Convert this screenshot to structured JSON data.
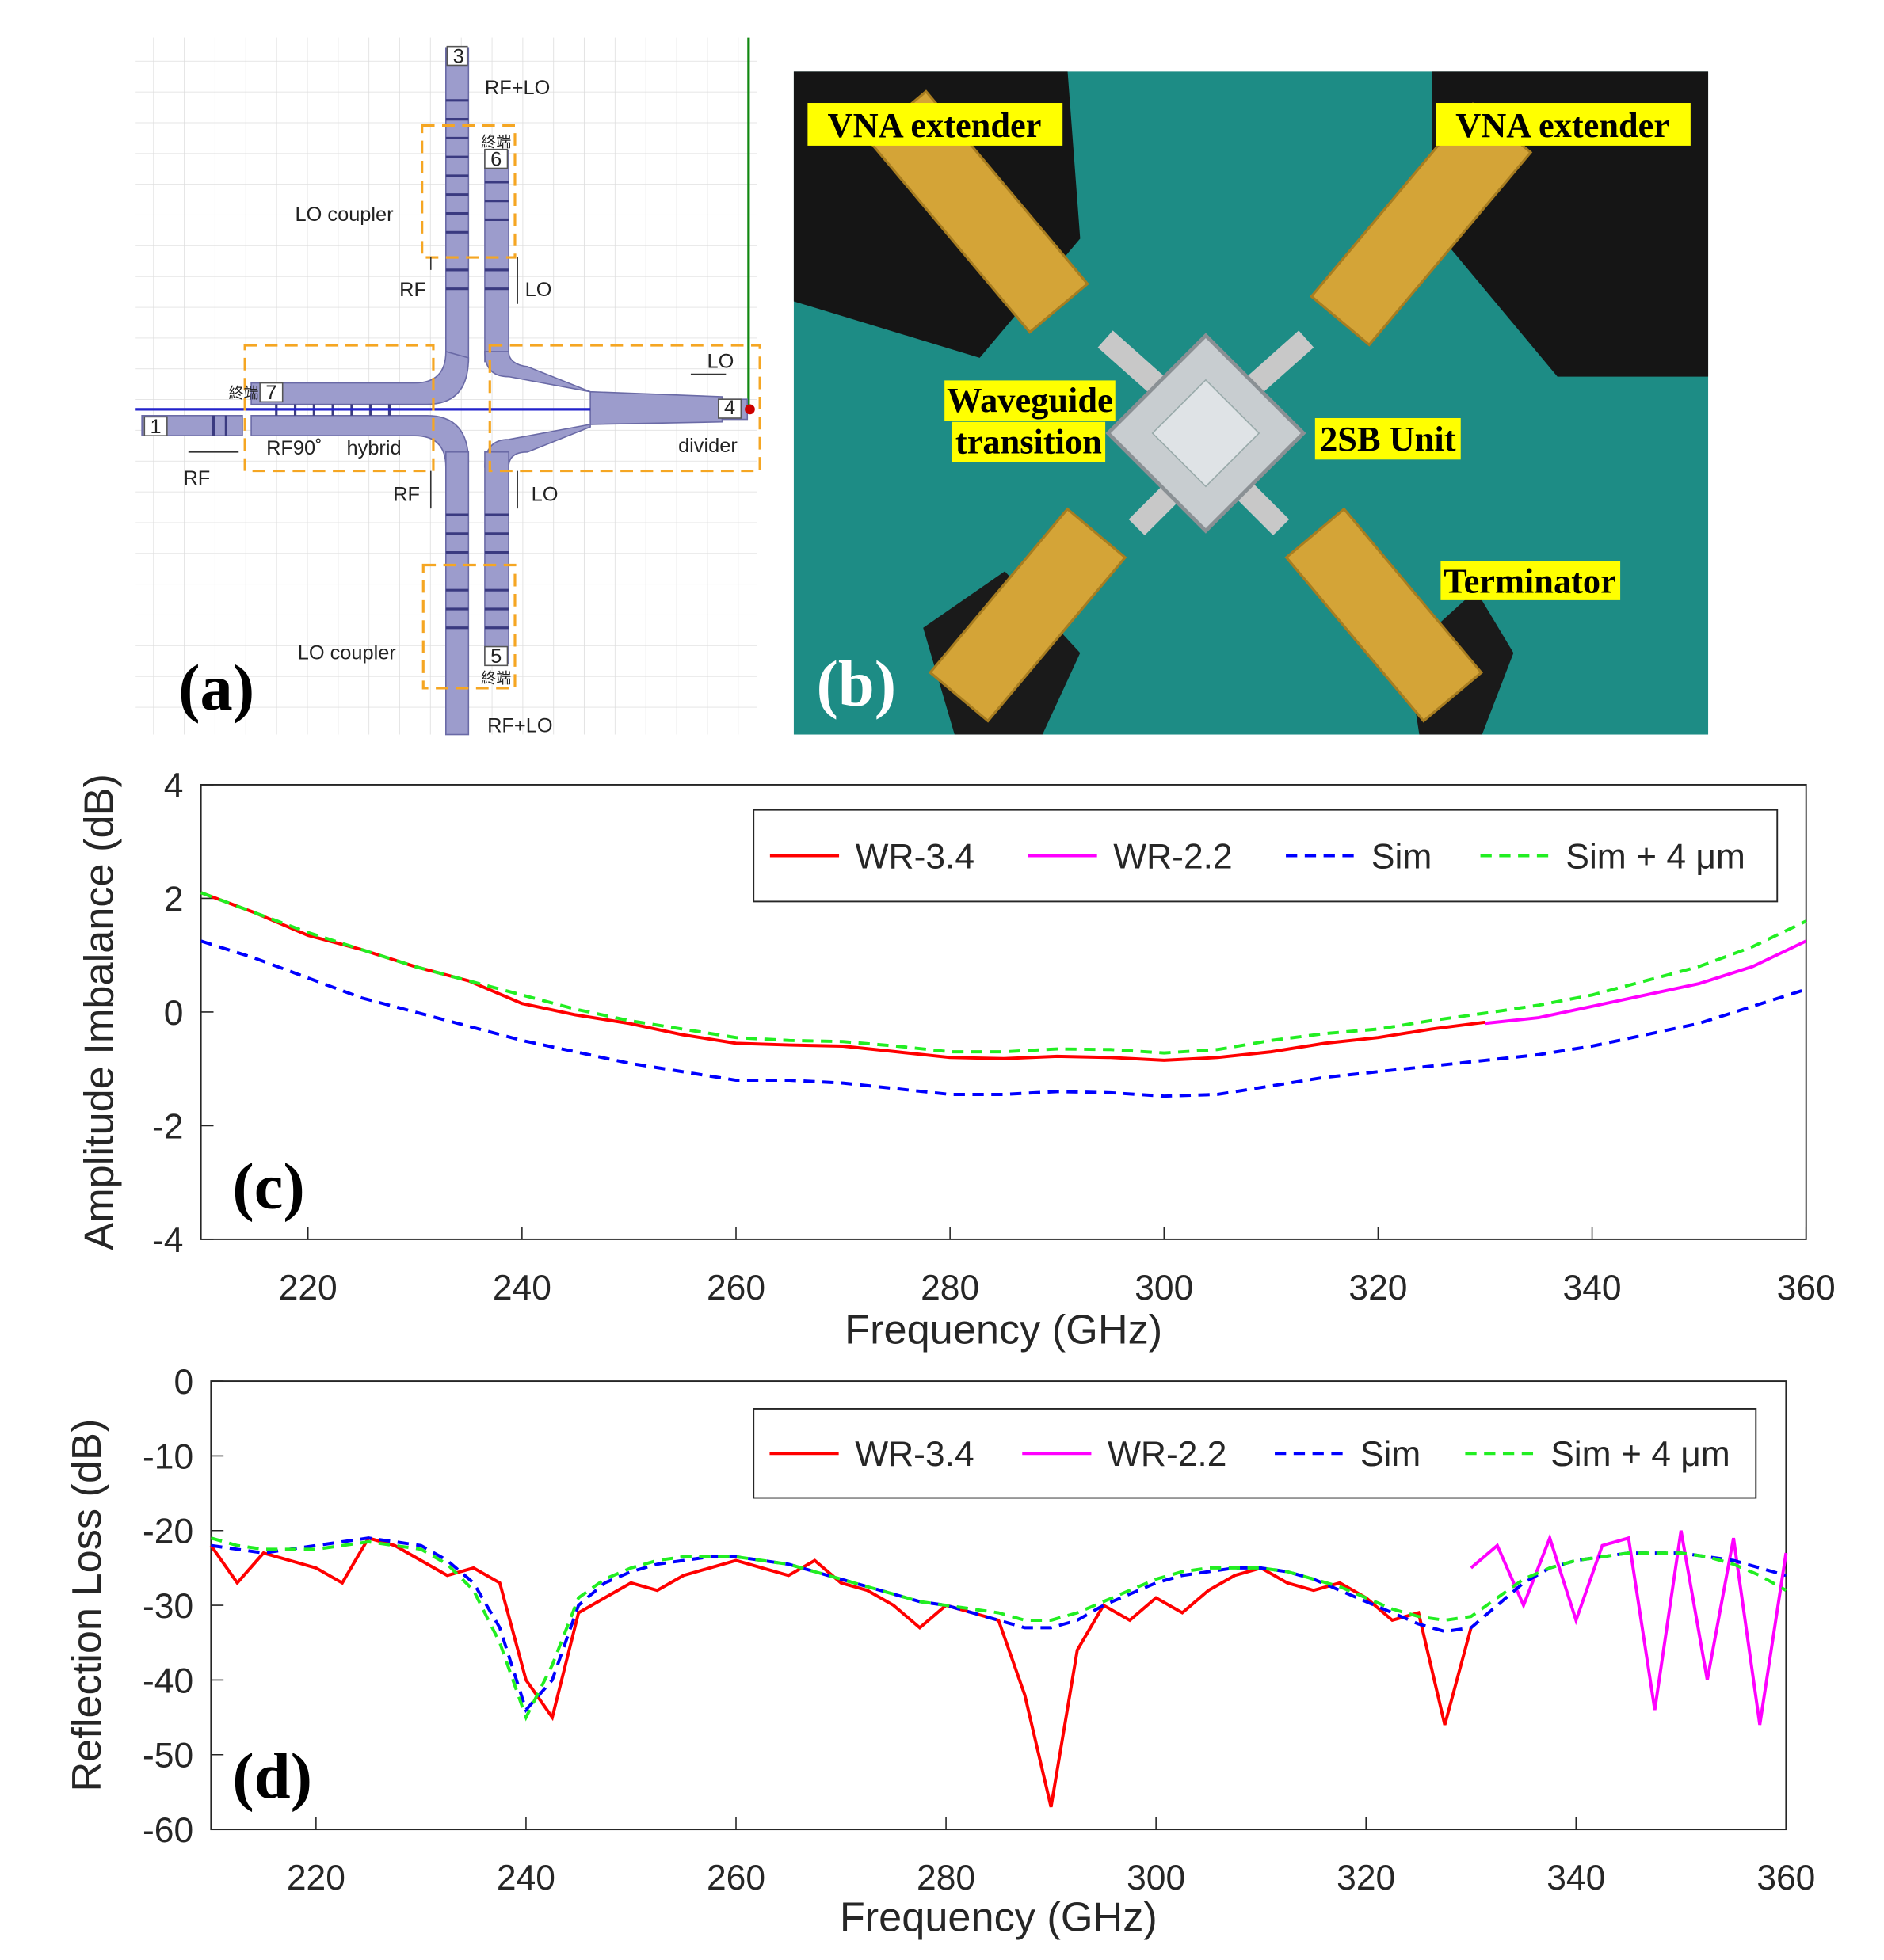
{
  "diagram": {
    "label": "(a)",
    "annotations": [
      "3",
      "RF+LO",
      "6",
      "終端",
      "LO coupler",
      "RF",
      "LO",
      "LO",
      "終端",
      "7",
      "4",
      "1",
      "RF90˚",
      "hybrid",
      "divider",
      "RF",
      "RF",
      "LO",
      "LO coupler",
      "5",
      "終端",
      "RF+LO"
    ]
  },
  "photo": {
    "label": "(b)",
    "labels": [
      "VNA extender",
      "VNA extender",
      [
        "Waveguide",
        "transition"
      ],
      "2SB Unit",
      "Terminator"
    ]
  },
  "chart_data": [
    {
      "type": "line",
      "label": "(c)",
      "xlabel": "Frequency (GHz)",
      "ylabel": "Amplitude Imbalance (dB)",
      "xlim": [
        210,
        360
      ],
      "ylim": [
        -4,
        4
      ],
      "xticks": [
        220,
        240,
        260,
        280,
        300,
        320,
        340,
        360
      ],
      "yticks": [
        -4,
        -2,
        0,
        2,
        4
      ],
      "grid": false,
      "legend": "upper right",
      "x": [
        210,
        215,
        220,
        225,
        230,
        235,
        240,
        245,
        250,
        255,
        260,
        265,
        270,
        275,
        280,
        285,
        290,
        295,
        300,
        305,
        310,
        315,
        320,
        325,
        330,
        335,
        340,
        345,
        350,
        355,
        360
      ],
      "series": [
        {
          "name": "WR-3.4",
          "color": "#ff0000",
          "dash": false,
          "values": [
            2.1,
            1.75,
            1.35,
            1.1,
            0.8,
            0.55,
            0.15,
            -0.05,
            -0.2,
            -0.4,
            -0.55,
            -0.58,
            -0.6,
            -0.7,
            -0.8,
            -0.82,
            -0.78,
            -0.8,
            -0.85,
            -0.8,
            -0.7,
            -0.55,
            -0.45,
            -0.3,
            -0.18,
            null,
            null,
            null,
            null,
            null,
            null
          ]
        },
        {
          "name": "WR-2.2",
          "color": "#ff00ff",
          "dash": false,
          "values": [
            null,
            null,
            null,
            null,
            null,
            null,
            null,
            null,
            null,
            null,
            null,
            null,
            null,
            null,
            null,
            null,
            null,
            null,
            null,
            null,
            null,
            null,
            null,
            null,
            -0.2,
            -0.1,
            0.1,
            0.3,
            0.5,
            0.8,
            1.25
          ]
        },
        {
          "name": "Sim",
          "color": "#0000ff",
          "dash": true,
          "values": [
            1.25,
            0.95,
            0.6,
            0.25,
            0.0,
            -0.25,
            -0.5,
            -0.7,
            -0.9,
            -1.05,
            -1.2,
            -1.2,
            -1.25,
            -1.35,
            -1.45,
            -1.45,
            -1.4,
            -1.42,
            -1.48,
            -1.45,
            -1.3,
            -1.15,
            -1.05,
            -0.95,
            -0.85,
            -0.75,
            -0.6,
            -0.4,
            -0.2,
            0.1,
            0.4
          ]
        },
        {
          "name": "Sim + 4 μm",
          "color": "#22ee22",
          "dash": true,
          "values": [
            2.1,
            1.75,
            1.4,
            1.1,
            0.8,
            0.55,
            0.3,
            0.05,
            -0.15,
            -0.3,
            -0.45,
            -0.5,
            -0.52,
            -0.6,
            -0.7,
            -0.7,
            -0.65,
            -0.66,
            -0.72,
            -0.66,
            -0.5,
            -0.38,
            -0.3,
            -0.15,
            -0.02,
            0.12,
            0.3,
            0.55,
            0.8,
            1.15,
            1.6
          ]
        }
      ]
    },
    {
      "type": "line",
      "label": "(d)",
      "xlabel": "Frequency (GHz)",
      "ylabel": "Reflection Loss (dB)",
      "xlim": [
        210,
        360
      ],
      "ylim": [
        -60,
        0
      ],
      "xticks": [
        220,
        240,
        260,
        280,
        300,
        320,
        340,
        360
      ],
      "yticks": [
        -60,
        -50,
        -40,
        -30,
        -20,
        -10,
        0
      ],
      "grid": false,
      "legend": "upper right",
      "x": [
        210,
        212.5,
        215,
        217.5,
        220,
        222.5,
        225,
        227.5,
        230,
        232.5,
        235,
        237.5,
        240,
        242.5,
        245,
        247.5,
        250,
        252.5,
        255,
        257.5,
        260,
        262.5,
        265,
        267.5,
        270,
        272.5,
        275,
        277.5,
        280,
        282.5,
        285,
        287.5,
        290,
        292.5,
        295,
        297.5,
        300,
        302.5,
        305,
        307.5,
        310,
        312.5,
        315,
        317.5,
        320,
        322.5,
        325,
        327.5,
        330,
        332.5,
        335,
        337.5,
        340,
        342.5,
        345,
        347.5,
        350,
        352.5,
        355,
        357.5,
        360
      ],
      "series": [
        {
          "name": "WR-3.4",
          "color": "#ff0000",
          "dash": false,
          "values": [
            -22,
            -27,
            -23,
            -24,
            -25,
            -27,
            -21,
            -22,
            -24,
            -26,
            -25,
            -27,
            -40,
            -45,
            -31,
            -29,
            -27,
            -28,
            -26,
            -25,
            -24,
            -25,
            -26,
            -24,
            -27,
            -28,
            -30,
            -33,
            -30,
            -31,
            -32,
            -42,
            -57,
            -36,
            -30,
            -32,
            -29,
            -31,
            -28,
            -26,
            -25,
            -27,
            -28,
            -27,
            -29,
            -32,
            -31,
            -46,
            -33,
            null,
            null,
            null,
            null,
            null,
            null,
            null,
            null,
            null,
            null,
            null,
            null
          ]
        },
        {
          "name": "WR-2.2",
          "color": "#ff00ff",
          "dash": false,
          "values": [
            null,
            null,
            null,
            null,
            null,
            null,
            null,
            null,
            null,
            null,
            null,
            null,
            null,
            null,
            null,
            null,
            null,
            null,
            null,
            null,
            null,
            null,
            null,
            null,
            null,
            null,
            null,
            null,
            null,
            null,
            null,
            null,
            null,
            null,
            null,
            null,
            null,
            null,
            null,
            null,
            null,
            null,
            null,
            null,
            null,
            null,
            null,
            null,
            -25,
            -22,
            -30,
            -21,
            -32,
            -22,
            -21,
            -44,
            -20,
            -40,
            -21,
            -46,
            -23
          ]
        },
        {
          "name": "Sim",
          "color": "#0000ff",
          "dash": true,
          "values": [
            -22,
            -22.5,
            -23,
            -22.5,
            -22,
            -21.5,
            -21,
            -21.5,
            -22,
            -24,
            -27,
            -33,
            -44,
            -40,
            -30,
            -27,
            -25.5,
            -24.5,
            -24,
            -23.5,
            -23.5,
            -24,
            -24.5,
            -25.5,
            -26.5,
            -27.5,
            -28.5,
            -29.5,
            -30,
            -31,
            -32,
            -33,
            -33,
            -32,
            -30,
            -28.5,
            -27,
            -26,
            -25.5,
            -25,
            -25,
            -25.5,
            -26.5,
            -28,
            -29.5,
            -31,
            -32.5,
            -33.5,
            -33,
            -30,
            -27,
            -25,
            -24,
            -23.5,
            -23,
            -23,
            -23,
            -23.5,
            -24,
            -25,
            -26
          ]
        },
        {
          "name": "Sim + 4 μm",
          "color": "#22ee22",
          "dash": true,
          "values": [
            -21,
            -22,
            -22.5,
            -22.5,
            -22.5,
            -22,
            -21.5,
            -22,
            -22.5,
            -24.5,
            -28,
            -35,
            -45,
            -38,
            -29,
            -26.5,
            -25,
            -24,
            -23.5,
            -23.5,
            -23.5,
            -24,
            -24.5,
            -25.5,
            -26.5,
            -27.5,
            -28.5,
            -29.5,
            -30,
            -30.5,
            -31,
            -32,
            -32,
            -31,
            -29.5,
            -28,
            -26.5,
            -25.5,
            -25,
            -25,
            -25,
            -25.5,
            -26.5,
            -27.5,
            -29,
            -30.5,
            -31.5,
            -32,
            -31.5,
            -29,
            -26.5,
            -25,
            -24,
            -23.5,
            -23,
            -23,
            -23,
            -23.5,
            -24.5,
            -26,
            -28
          ]
        }
      ]
    }
  ]
}
